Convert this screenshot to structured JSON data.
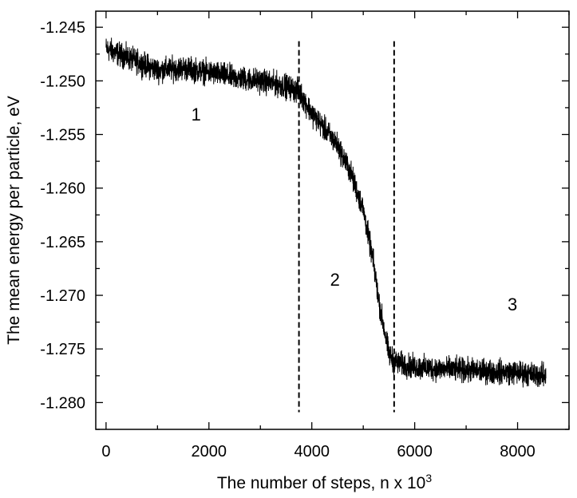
{
  "chart_data": {
    "type": "line",
    "title": "",
    "xlabel": "The number of steps, n x 10",
    "xlabel_superscript": "3",
    "ylabel": "The mean energy per particle, eV",
    "xlim": [
      -200,
      9000
    ],
    "ylim": [
      -1.2825,
      -1.2435
    ],
    "x_ticks": [
      0,
      2000,
      4000,
      6000,
      8000
    ],
    "x_tick_labels": [
      "0",
      "2000",
      "4000",
      "6000",
      "8000"
    ],
    "y_ticks": [
      -1.245,
      -1.25,
      -1.255,
      -1.26,
      -1.265,
      -1.27,
      -1.275,
      -1.28
    ],
    "y_tick_labels": [
      "-1.245",
      "-1.250",
      "-1.255",
      "-1.260",
      "-1.265",
      "-1.270",
      "-1.275",
      "-1.280"
    ],
    "grid": false,
    "series": [
      {
        "noise_amplitude": 0.0011,
        "x": [
          0,
          500,
          1000,
          1500,
          2000,
          2500,
          3000,
          3500,
          3750,
          4000,
          4250,
          4500,
          4750,
          5000,
          5100,
          5200,
          5300,
          5400,
          5500,
          5600,
          5800,
          6000,
          7000,
          8000,
          8550
        ],
        "y": [
          -1.247,
          -1.248,
          -1.249,
          -1.2488,
          -1.2492,
          -1.2497,
          -1.25,
          -1.2505,
          -1.251,
          -1.253,
          -1.2545,
          -1.256,
          -1.2585,
          -1.262,
          -1.2645,
          -1.267,
          -1.2705,
          -1.273,
          -1.2755,
          -1.2762,
          -1.2765,
          -1.2767,
          -1.277,
          -1.2772,
          -1.2775
        ]
      }
    ],
    "dividers_x": [
      3750,
      5600
    ],
    "annotations": [
      {
        "text": "1",
        "x": 1750,
        "y": -1.2537
      },
      {
        "text": "2",
        "x": 4450,
        "y": -1.2691
      },
      {
        "text": "3",
        "x": 7900,
        "y": -1.2714
      }
    ]
  }
}
